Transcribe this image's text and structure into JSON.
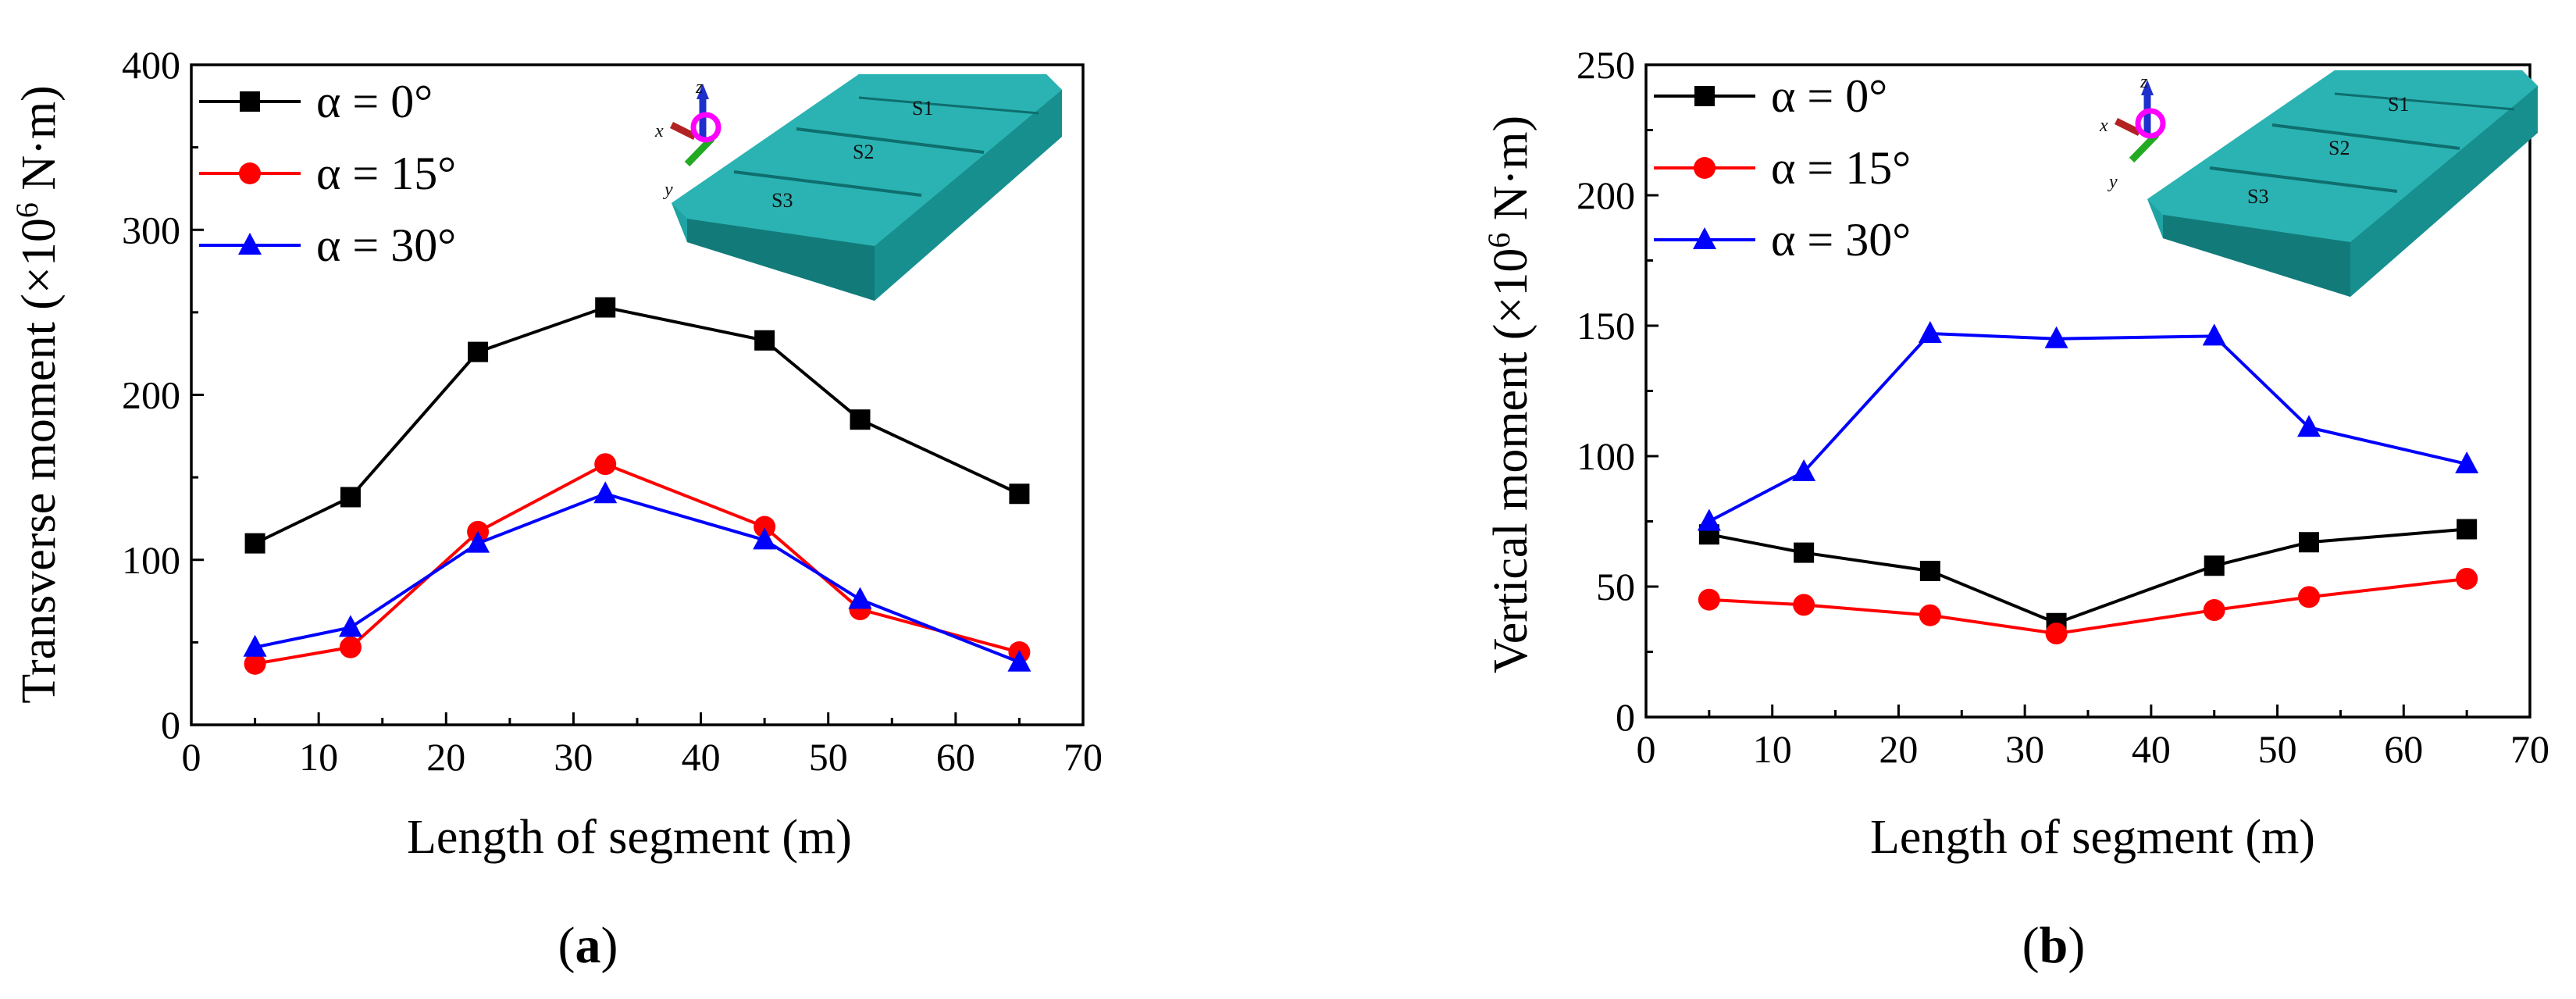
{
  "chart_data": [
    {
      "panel": "a",
      "type": "line",
      "ylabel_main": "Transverse moment (×10",
      "ylabel_exp": "6",
      "ylabel_tail": " N·m)",
      "xlabel": "Length of segment (m)",
      "xlim": [
        0,
        70
      ],
      "ylim": [
        0,
        400
      ],
      "xticks": [
        0,
        10,
        20,
        30,
        40,
        50,
        60,
        70
      ],
      "yticks": [
        0,
        100,
        200,
        300,
        400
      ],
      "x": [
        5,
        12.5,
        22.5,
        32.5,
        45,
        52.5,
        65
      ],
      "series": [
        {
          "name": "α = 0°",
          "color": "#000000",
          "marker": "square",
          "values": [
            110,
            138,
            226,
            253,
            233,
            185,
            140
          ]
        },
        {
          "name": "α = 15°",
          "color": "#ff0000",
          "marker": "circle",
          "values": [
            37,
            47,
            117,
            158,
            120,
            70,
            44
          ]
        },
        {
          "name": "α = 30°",
          "color": "#0000ff",
          "marker": "triangle",
          "values": [
            47,
            59,
            110,
            140,
            112,
            76,
            38
          ]
        }
      ],
      "inset": {
        "labels": [
          "S1",
          "S2",
          "S3"
        ],
        "axes": [
          "x",
          "y",
          "z"
        ]
      }
    },
    {
      "panel": "b",
      "type": "line",
      "ylabel_main": "Vertical moment (×10",
      "ylabel_exp": "6",
      "ylabel_tail": " N·m)",
      "xlabel": "Length of segment (m)",
      "xlim": [
        0,
        70
      ],
      "ylim": [
        0,
        250
      ],
      "xticks": [
        0,
        10,
        20,
        30,
        40,
        50,
        60,
        70
      ],
      "yticks": [
        0,
        50,
        100,
        150,
        200,
        250
      ],
      "x": [
        5,
        12.5,
        22.5,
        32.5,
        45,
        52.5,
        65
      ],
      "series": [
        {
          "name": "α = 0°",
          "color": "#000000",
          "marker": "square",
          "values": [
            70,
            63,
            56,
            36,
            58,
            67,
            72
          ]
        },
        {
          "name": "α = 15°",
          "color": "#ff0000",
          "marker": "circle",
          "values": [
            45,
            43,
            39,
            32,
            41,
            46,
            53
          ]
        },
        {
          "name": "α = 30°",
          "color": "#0000ff",
          "marker": "triangle",
          "values": [
            75,
            94,
            147,
            145,
            146,
            111,
            97
          ]
        }
      ],
      "inset": {
        "labels": [
          "S1",
          "S2",
          "S3"
        ],
        "axes": [
          "x",
          "y",
          "z"
        ]
      }
    }
  ],
  "panel_labels": {
    "a": "a",
    "b": "b"
  },
  "colors": {
    "inset_body": "#1fa3a3",
    "inset_dark": "#137a7a",
    "axis_x": "#b22222",
    "axis_y": "#22aa22",
    "axis_z": "#1f2fcc",
    "axis_ring": "#ff00ff"
  }
}
